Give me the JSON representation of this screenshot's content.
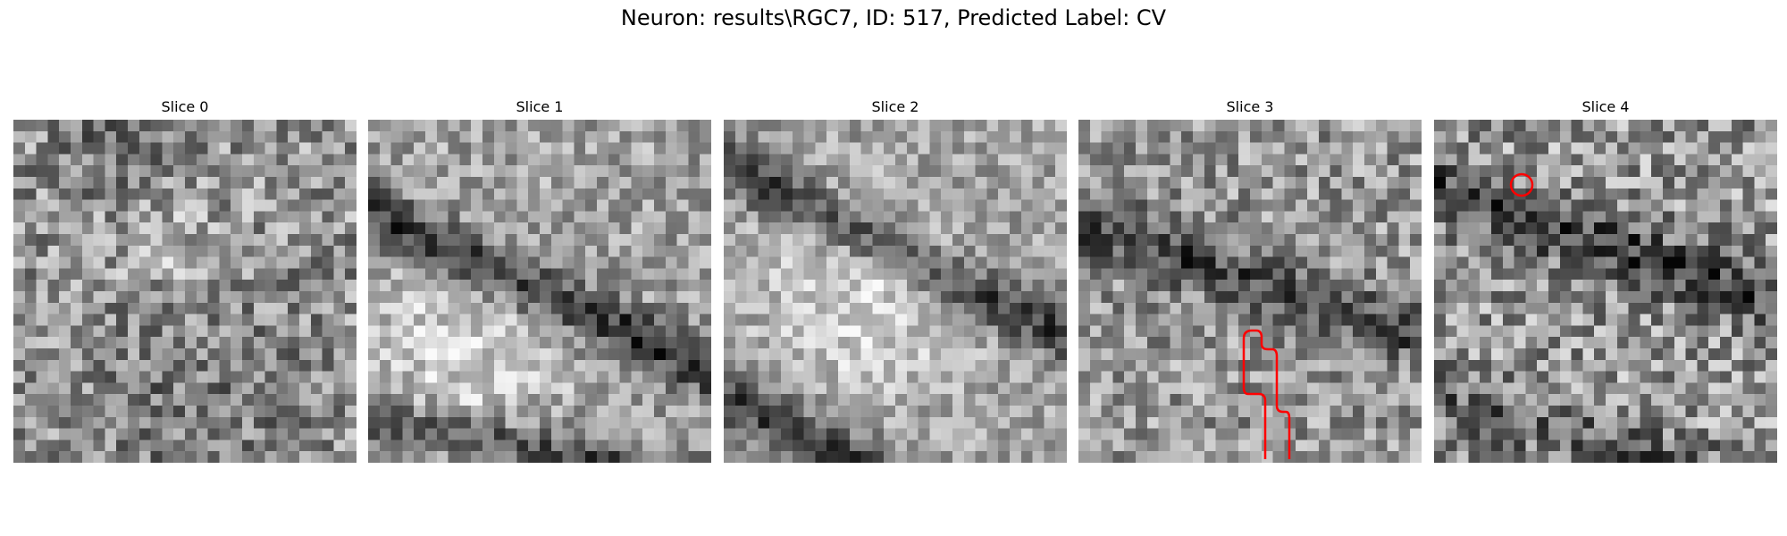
{
  "figure": {
    "title": "Neuron: results\\RGC7, ID: 517, Predicted Label: CV"
  },
  "panels": [
    {
      "title": "Slice 0"
    },
    {
      "title": "Slice 1"
    },
    {
      "title": "Slice 2"
    },
    {
      "title": "Slice 3"
    },
    {
      "title": "Slice 4"
    }
  ],
  "colors": {
    "contour": "#ff0000",
    "background": "#ffffff"
  }
}
